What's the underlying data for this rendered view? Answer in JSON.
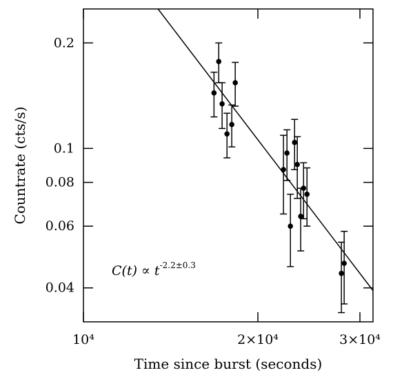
{
  "chart_data": {
    "type": "scatter",
    "xlabel": "Time since burst (seconds)",
    "ylabel": "Countrate (cts/s)",
    "xscale": "log",
    "yscale": "log",
    "xlim": [
      10000,
      31600
    ],
    "ylim": [
      0.032,
      0.25
    ],
    "xticks": [
      {
        "value": 10000,
        "label": "10⁴"
      },
      {
        "value": 20000,
        "label": "2×10⁴"
      },
      {
        "value": 30000,
        "label": "3×10⁴"
      }
    ],
    "yticks": [
      0.2,
      0.1,
      0.08,
      0.06,
      0.04
    ],
    "series": [
      {
        "color": "#000000",
        "x": [
          16800,
          17120,
          17350,
          17690,
          18030,
          18280,
          22140,
          22450,
          22760,
          23140,
          23390,
          23710,
          23980,
          24310,
          27870,
          28180
        ],
        "values": [
          0.144,
          0.177,
          0.134,
          0.11,
          0.117,
          0.154,
          0.087,
          0.097,
          0.06,
          0.104,
          0.09,
          0.064,
          0.077,
          0.074,
          0.044,
          0.047
        ],
        "errors": [
          0.021,
          0.023,
          0.02,
          0.016,
          0.016,
          0.022,
          0.022,
          0.016,
          0.014,
          0.017,
          0.018,
          0.013,
          0.014,
          0.014,
          0.01,
          0.011
        ]
      }
    ],
    "fit": {
      "color": "#000000",
      "x": [
        13450,
        31600
      ],
      "values": [
        0.25,
        0.0393
      ]
    },
    "annotation": {
      "text": "C(t) ∝ t",
      "exponent": "-2.2±0.3"
    }
  }
}
